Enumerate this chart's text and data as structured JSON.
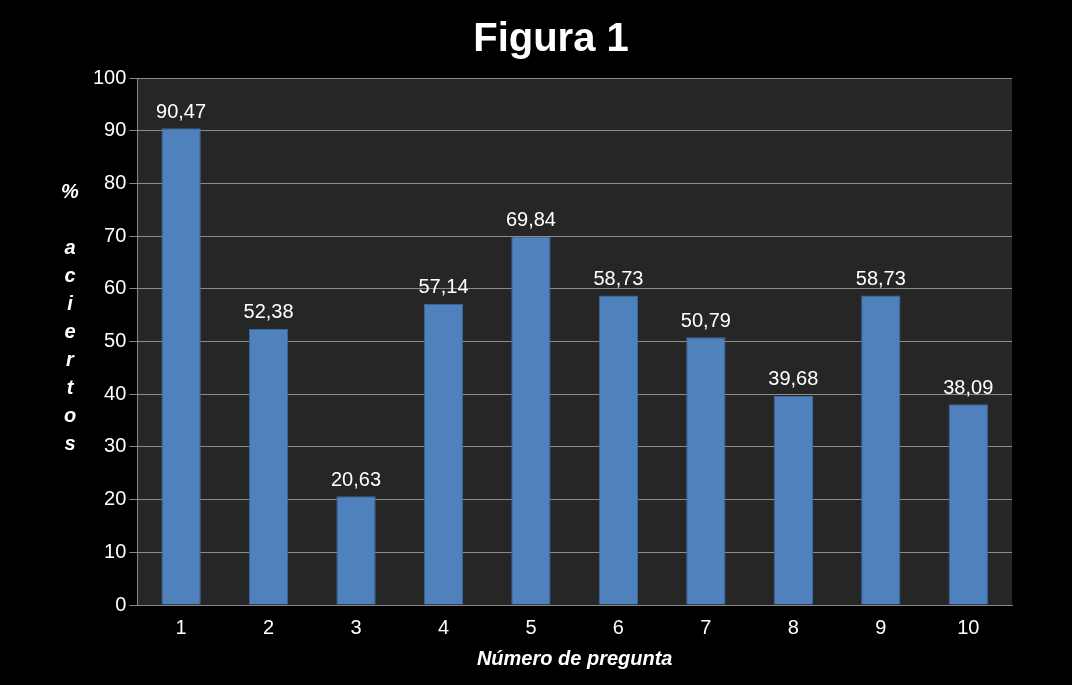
{
  "chart_data": {
    "type": "bar",
    "title": "Figura 1",
    "xlabel": "Número de pregunta",
    "ylabel": "% aciertos",
    "categories": [
      "1",
      "2",
      "3",
      "4",
      "5",
      "6",
      "7",
      "8",
      "9",
      "10"
    ],
    "values": [
      90.47,
      52.38,
      20.63,
      57.14,
      69.84,
      58.73,
      50.79,
      39.68,
      58.73,
      38.09
    ],
    "value_labels": [
      "90,47",
      "52,38",
      "20,63",
      "57,14",
      "69,84",
      "58,73",
      "50,79",
      "39,68",
      "58,73",
      "38,09"
    ],
    "color": "#4f81bd",
    "ylim": [
      0,
      100
    ],
    "yticks": [
      0,
      10,
      20,
      30,
      40,
      50,
      60,
      70,
      80,
      90,
      100
    ],
    "grid": "y",
    "legend": false
  }
}
